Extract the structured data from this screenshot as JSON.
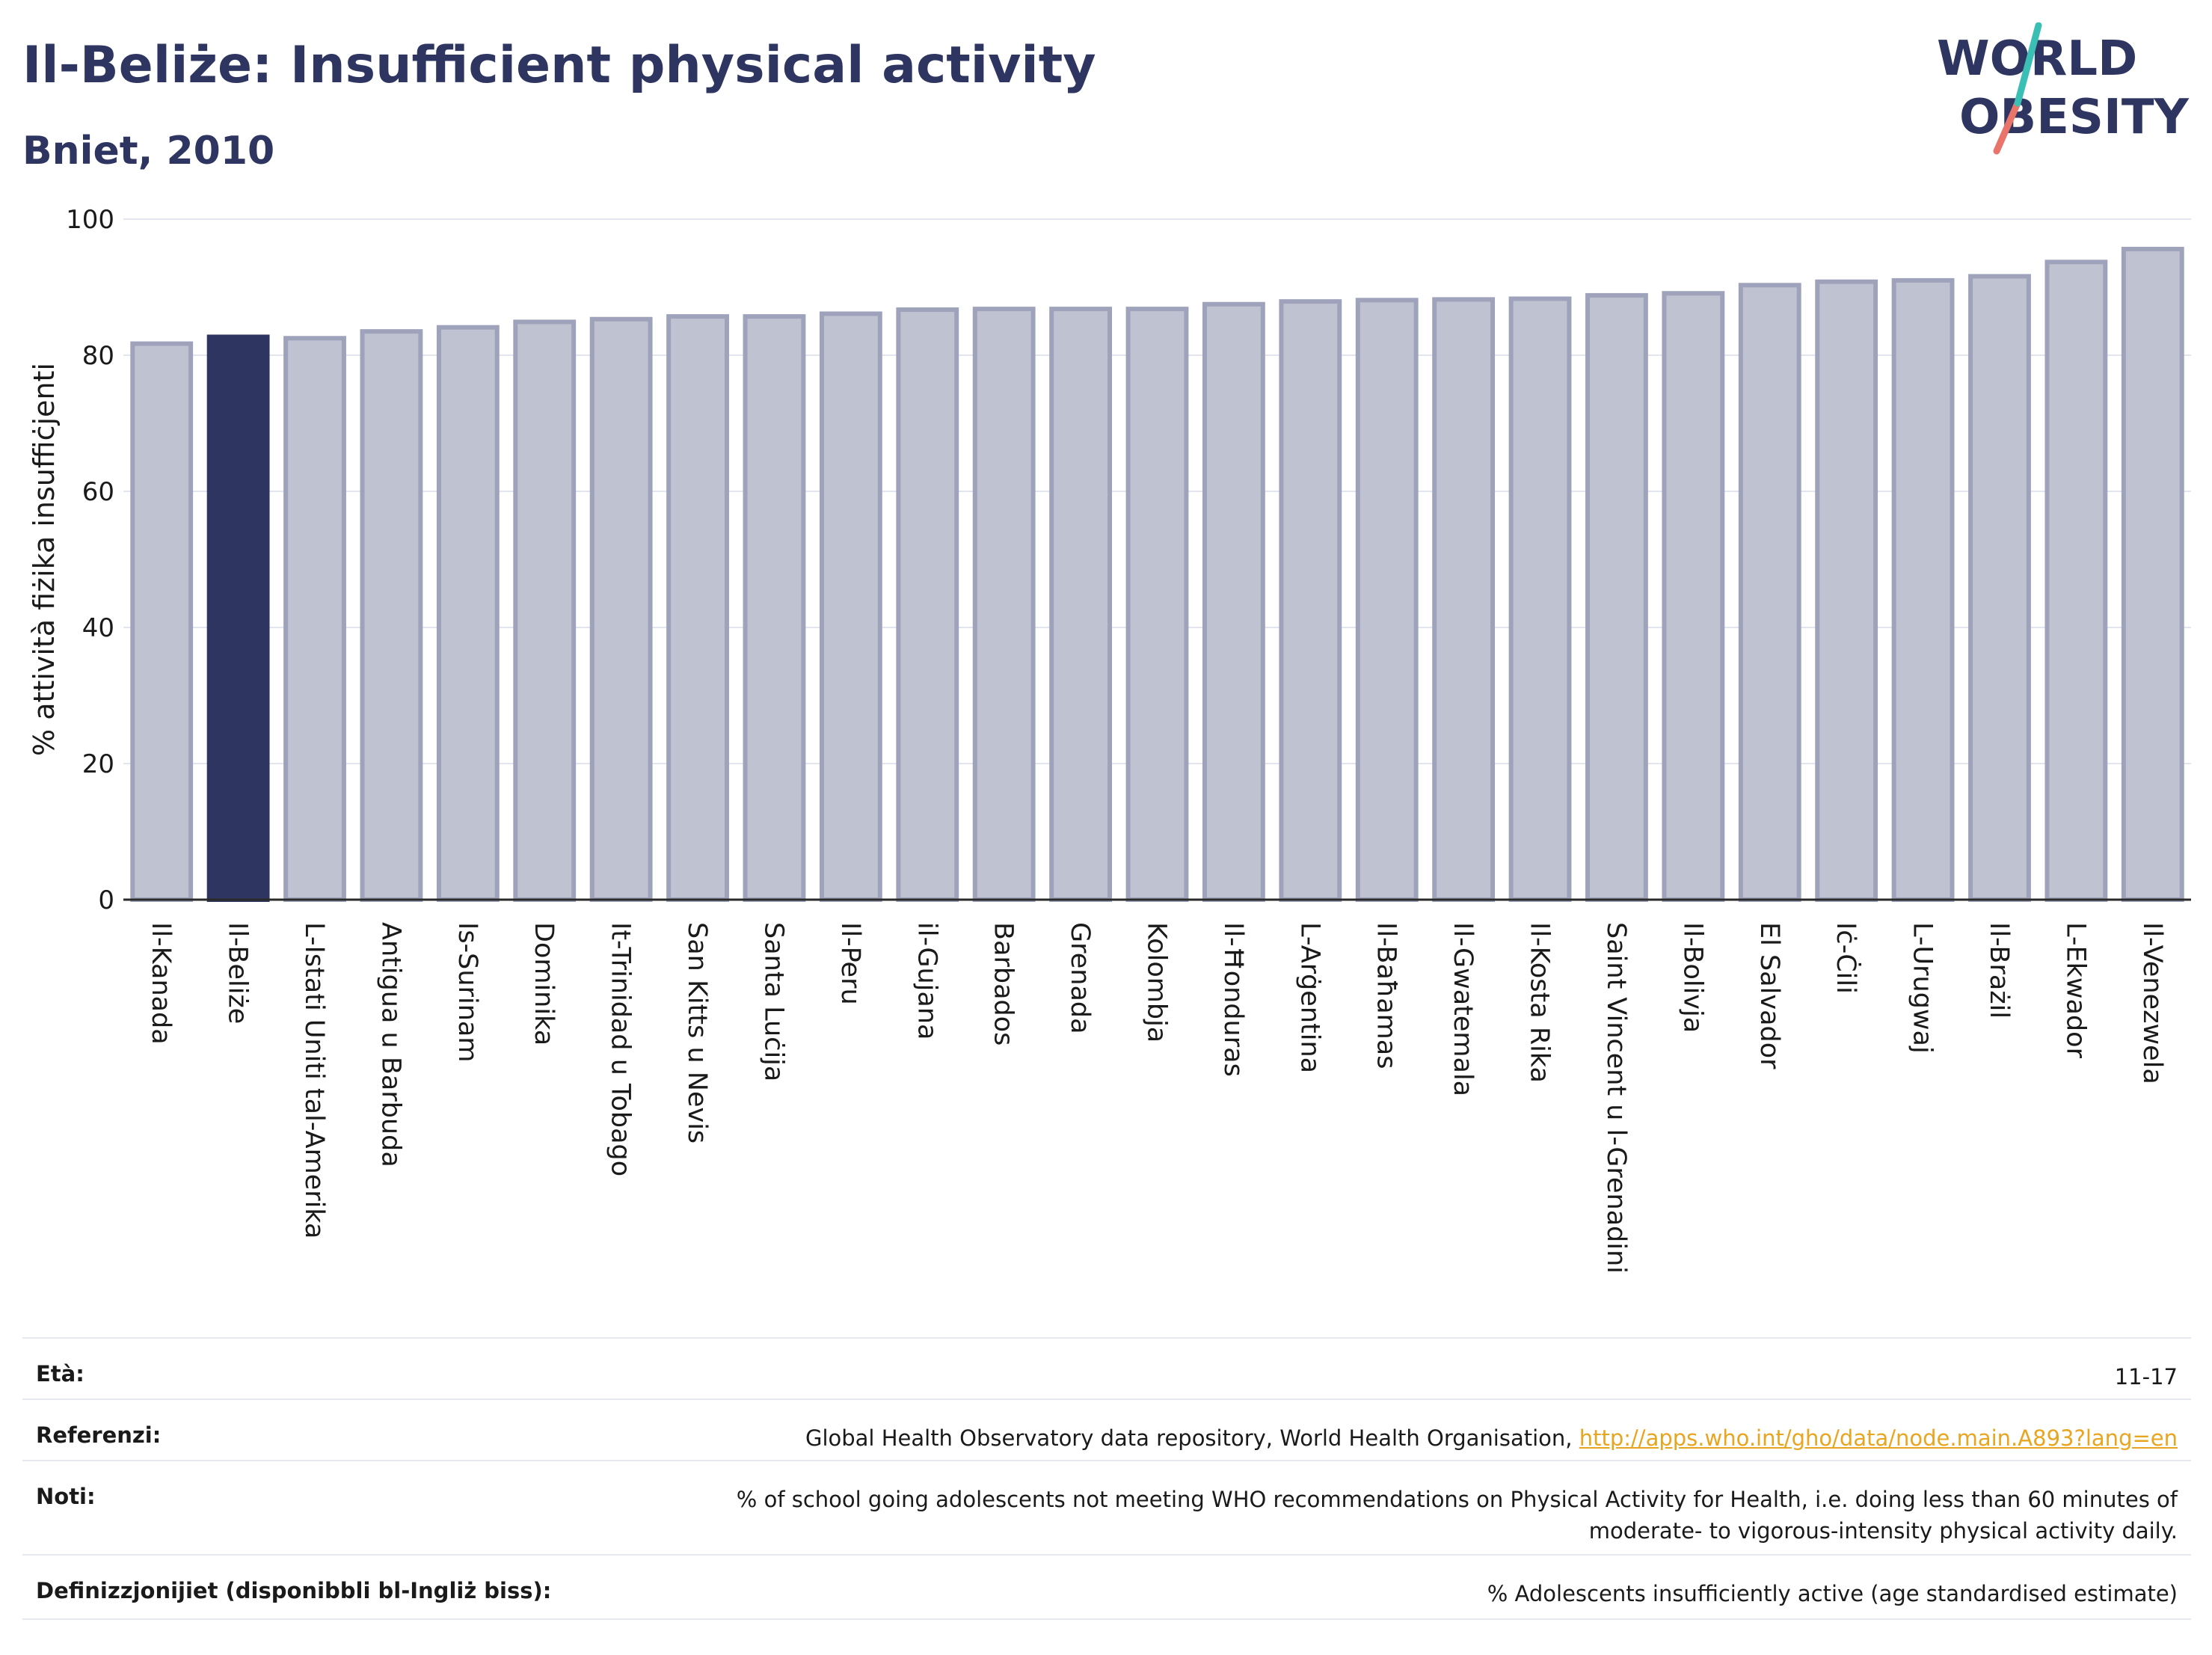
{
  "header": {
    "title": "Il-Beliże: Insufficient physical activity",
    "subtitle": "Bniet, 2010"
  },
  "logo": {
    "line1": "WORLD",
    "line2": "OBESITY"
  },
  "chart_data": {
    "type": "bar",
    "ylabel": "% attività fiżika insuffiċjenti",
    "ylim": [
      0,
      100
    ],
    "yticks": [
      0,
      20,
      40,
      60,
      80,
      100
    ],
    "grid": true,
    "highlight": "Il-Beliże",
    "colors": {
      "bar": "#bfc2d0",
      "bar_edge": "#9ea3bb",
      "highlight": "#2d3560"
    },
    "categories": [
      "Il-Kanada",
      "Il-Beliże",
      "L-Istati Uniti tal-Amerika",
      "Antigua u Barbuda",
      "Is-Surinam",
      "Dominika",
      "It-Trinidad u Tobago",
      "San Kitts u Nevis",
      "Santa Luċija",
      "Il-Peru",
      "il-Gujana",
      "Barbados",
      "Grenada",
      "Kolombja",
      "Il-Ħonduras",
      "L-Arġentina",
      "Il-Baħamas",
      "Il-Gwatemala",
      "Il-Kosta Rika",
      "Saint Vincent u l-Grenadini",
      "Il-Bolivja",
      "El Salvador",
      "Iċ-Ċili",
      "L-Urugwaj",
      "Il-Brażil",
      "L-Ekwador",
      "Il-Venezwela"
    ],
    "values": [
      81.7,
      82.7,
      82.5,
      83.5,
      84.1,
      84.9,
      85.3,
      85.7,
      85.7,
      86.1,
      86.7,
      86.8,
      86.8,
      86.8,
      87.5,
      87.9,
      88.1,
      88.2,
      88.3,
      88.8,
      89.1,
      90.3,
      90.8,
      91.0,
      91.6,
      93.7,
      95.6
    ]
  },
  "info": {
    "age_label": "Età:",
    "age_value": "11-17",
    "ref_label": "Referenzi:",
    "ref_text": "Global Health Observatory data repository, World Health Organisation, ",
    "ref_link": "http://apps.who.int/gho/data/node.main.A893?lang=en",
    "notes_label": "Noti:",
    "notes_line1": "% of school going adolescents not meeting WHO recommendations on Physical Activity for Health, i.e. doing less than 60 minutes of",
    "notes_line2": "moderate- to vigorous-intensity physical activity daily.",
    "def_label": "Definizzjonijiet (disponibbli bl-Ingliż biss):",
    "def_value": "% Adolescents insufficiently active (age standardised estimate)"
  }
}
